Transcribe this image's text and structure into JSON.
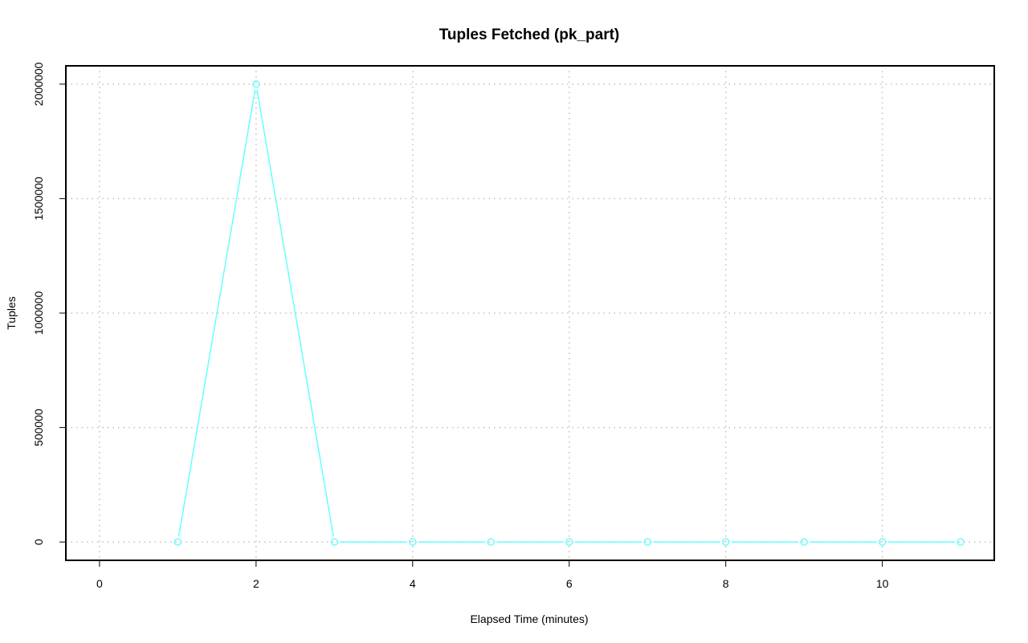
{
  "chart_data": {
    "type": "line",
    "title": "Tuples Fetched (pk_part)",
    "xlabel": "Elapsed Time (minutes)",
    "ylabel": "Tuples",
    "x": [
      1,
      2,
      3,
      4,
      5,
      6,
      7,
      8,
      9,
      10,
      11
    ],
    "series": [
      {
        "values": [
          0,
          2000000,
          0,
          0,
          0,
          0,
          0,
          0,
          0,
          0,
          0
        ],
        "color": "#66ffff"
      }
    ],
    "xlim": [
      -0.43,
      11.43
    ],
    "ylim": [
      -80000,
      2080000
    ],
    "xticks": [
      "0",
      "2",
      "4",
      "6",
      "8",
      "10"
    ],
    "xtick_values": [
      0,
      2,
      4,
      6,
      8,
      10
    ],
    "yticks": [
      "0",
      "500000",
      "1000000",
      "1500000",
      "2000000"
    ],
    "ytick_values": [
      0,
      500000,
      1000000,
      1500000,
      2000000
    ],
    "grid": true,
    "grid_color": "#c0c0c0",
    "marker": "open-circle"
  }
}
